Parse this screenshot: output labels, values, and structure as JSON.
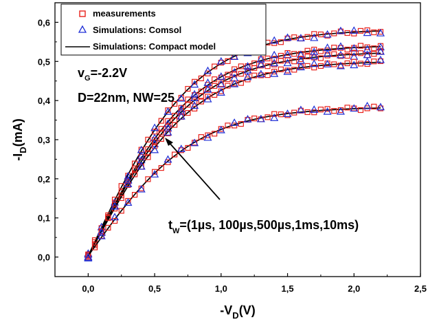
{
  "chart_data": {
    "type": "scatter",
    "xlabel": {
      "prefix": "-V",
      "sub": "D",
      "suffix": "(V)"
    },
    "ylabel": {
      "prefix": "-I",
      "sub": "D",
      "suffix": "(mA)"
    },
    "xlim": [
      -0.25,
      2.5
    ],
    "ylim": [
      -0.05,
      0.65
    ],
    "xticks": [
      0.0,
      0.5,
      1.0,
      1.5,
      2.0,
      2.5
    ],
    "xtick_labels": [
      "0,0",
      "0,5",
      "1,0",
      "1,5",
      "2,0",
      "2,5"
    ],
    "yticks": [
      0.0,
      0.1,
      0.2,
      0.3,
      0.4,
      0.5,
      0.6
    ],
    "ytick_labels": [
      "0,0",
      "0,1",
      "0,2",
      "0,3",
      "0,4",
      "0,5",
      "0,6"
    ],
    "grid": false,
    "legend": {
      "placement": "top-left",
      "entries": [
        {
          "label": "measurements",
          "marker": "open-square",
          "color": "#e8201a"
        },
        {
          "label": "Simulations: Comsol",
          "marker": "open-triangle",
          "color": "#1f2fd6"
        },
        {
          "label": "Simulations: Compact model",
          "marker": "line",
          "color": "#000000"
        }
      ]
    },
    "annotations": {
      "vg": {
        "prefix": "v",
        "sub": "G",
        "suffix": "=-2.2V"
      },
      "geom": "D=22nm, NW=25",
      "tw": {
        "prefix": "t",
        "sub": "W",
        "suffix": "=(1µs, 100µs,500µs,1ms,10ms)"
      },
      "arrow_direction": "decreasing current with increasing stress time"
    },
    "series": [
      {
        "x_end": 2.2,
        "y_end": 0.575
      },
      {
        "x_end": 2.2,
        "y_end": 0.535
      },
      {
        "x_end": 2.2,
        "y_end": 0.518
      },
      {
        "x_end": 2.2,
        "y_end": 0.495
      },
      {
        "x_end": 2.2,
        "y_end": 0.378
      }
    ],
    "marker_colors": {
      "measurements": "#e8201a",
      "comsol": "#1f2fd6",
      "model": "#000000"
    }
  }
}
